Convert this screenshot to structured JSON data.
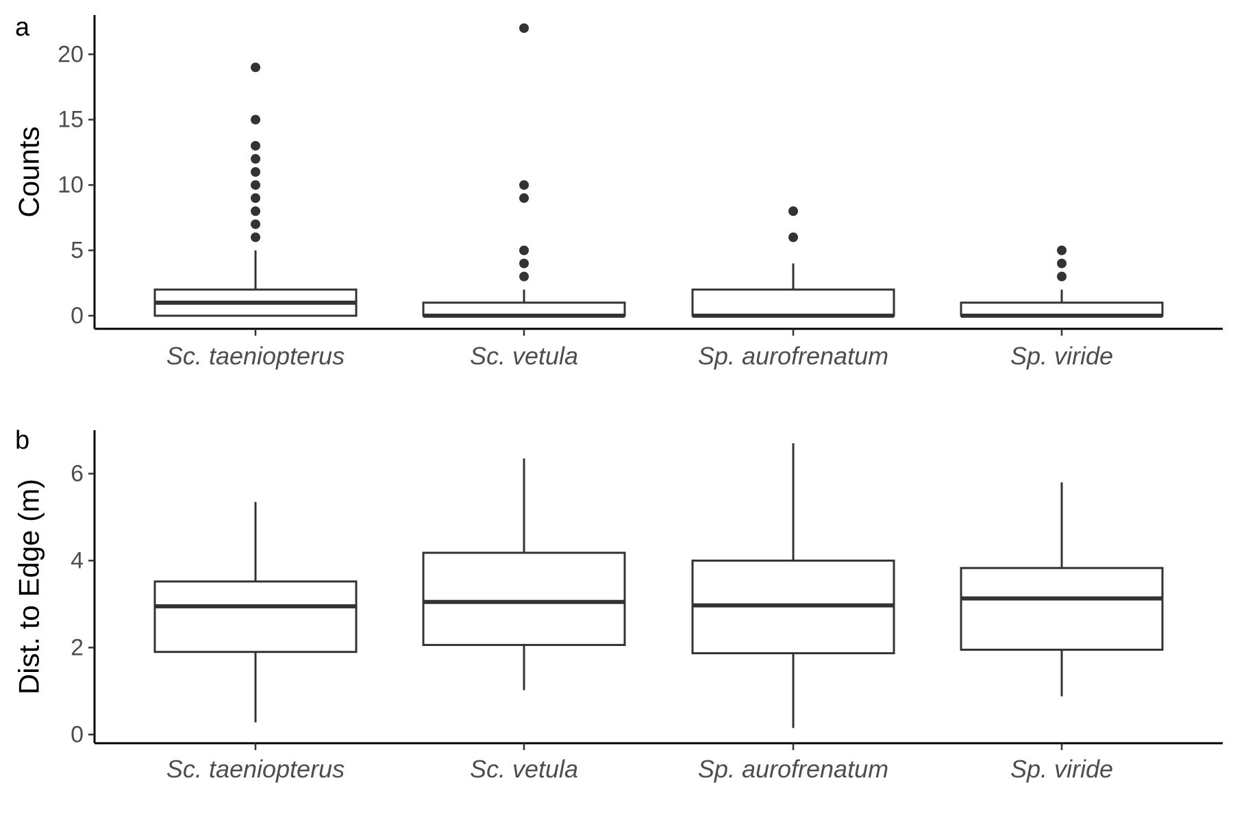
{
  "chart_data": [
    {
      "type": "box",
      "panel_tag": "a",
      "ylabel": "Counts",
      "xlabel": "",
      "ylim": [
        -1,
        23
      ],
      "yticks": [
        0,
        5,
        10,
        15,
        20
      ],
      "grid": false,
      "categories": [
        "Sc. taeniopterus",
        "Sc. vetula",
        "Sp. aurofrenatum",
        "Sp. viride"
      ],
      "boxes": [
        {
          "whisker_low": 0,
          "q1": 0,
          "median": 1,
          "q3": 2,
          "whisker_high": 5,
          "outliers": [
            6,
            7,
            8,
            9,
            10,
            11,
            12,
            13,
            15,
            19
          ]
        },
        {
          "whisker_low": 0,
          "q1": 0,
          "median": 0,
          "q3": 1,
          "whisker_high": 2,
          "outliers": [
            3,
            4,
            5,
            9,
            10,
            22
          ]
        },
        {
          "whisker_low": 0,
          "q1": 0,
          "median": 0,
          "q3": 2,
          "whisker_high": 4,
          "outliers": [
            6,
            8
          ]
        },
        {
          "whisker_low": 0,
          "q1": 0,
          "median": 0,
          "q3": 1,
          "whisker_high": 2,
          "outliers": [
            3,
            4,
            5
          ]
        }
      ]
    },
    {
      "type": "box",
      "panel_tag": "b",
      "ylabel": "Dist. to Edge (m)",
      "xlabel": "",
      "ylim": [
        -0.2,
        7.0
      ],
      "yticks": [
        0,
        2,
        4,
        6
      ],
      "grid": false,
      "categories": [
        "Sc. taeniopterus",
        "Sc. vetula",
        "Sp. aurofrenatum",
        "Sp. viride"
      ],
      "boxes": [
        {
          "whisker_low": 0.28,
          "q1": 1.9,
          "median": 2.95,
          "q3": 3.52,
          "whisker_high": 5.35,
          "outliers": []
        },
        {
          "whisker_low": 1.02,
          "q1": 2.06,
          "median": 3.05,
          "q3": 4.18,
          "whisker_high": 6.35,
          "outliers": []
        },
        {
          "whisker_low": 0.15,
          "q1": 1.87,
          "median": 2.97,
          "q3": 4.0,
          "whisker_high": 6.7,
          "outliers": []
        },
        {
          "whisker_low": 0.88,
          "q1": 1.95,
          "median": 3.13,
          "q3": 3.83,
          "whisker_high": 5.8,
          "outliers": []
        }
      ]
    }
  ]
}
